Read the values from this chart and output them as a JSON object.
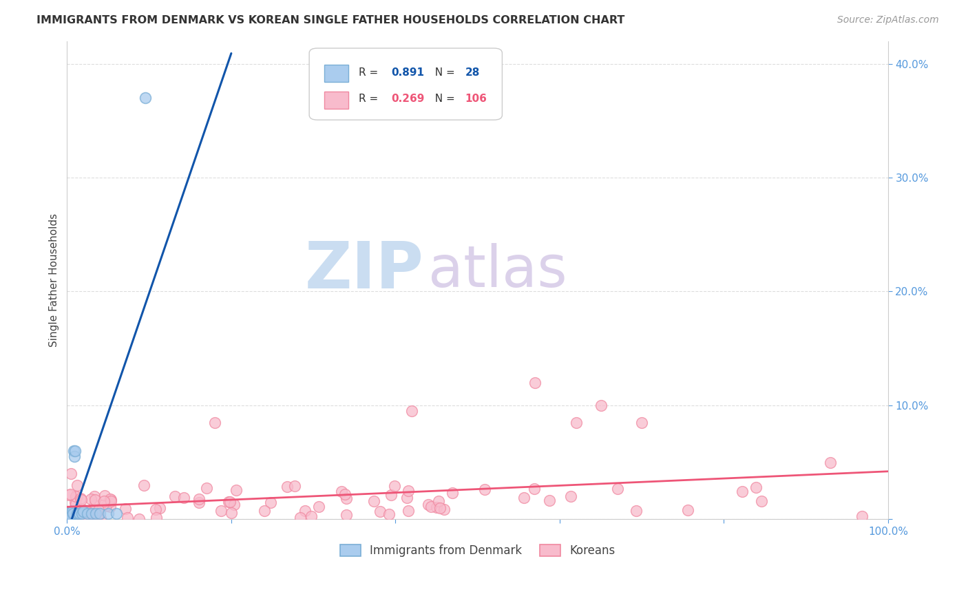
{
  "title": "IMMIGRANTS FROM DENMARK VS KOREAN SINGLE FATHER HOUSEHOLDS CORRELATION CHART",
  "source": "Source: ZipAtlas.com",
  "ylabel": "Single Father Households",
  "xlim": [
    0.0,
    1.0
  ],
  "ylim": [
    0.0,
    0.42
  ],
  "denmark_color": "#7aaed6",
  "danish_scatter_color": "#aaccee",
  "danish_line_color": "#1155aa",
  "korean_color": "#f088a0",
  "korean_scatter_color": "#f8bbcc",
  "korean_line_color": "#ee5577",
  "denmark_R": 0.891,
  "denmark_N": 28,
  "korean_R": 0.269,
  "korean_N": 106,
  "watermark_zip_color": "#c8ddf0",
  "watermark_atlas_color": "#d4c8e8",
  "background_color": "#ffffff",
  "grid_color": "#dddddd",
  "tick_label_color": "#5599dd",
  "axis_label_color": "#444444",
  "title_color": "#333333",
  "source_color": "#999999",
  "stats_text_color": "#333333"
}
